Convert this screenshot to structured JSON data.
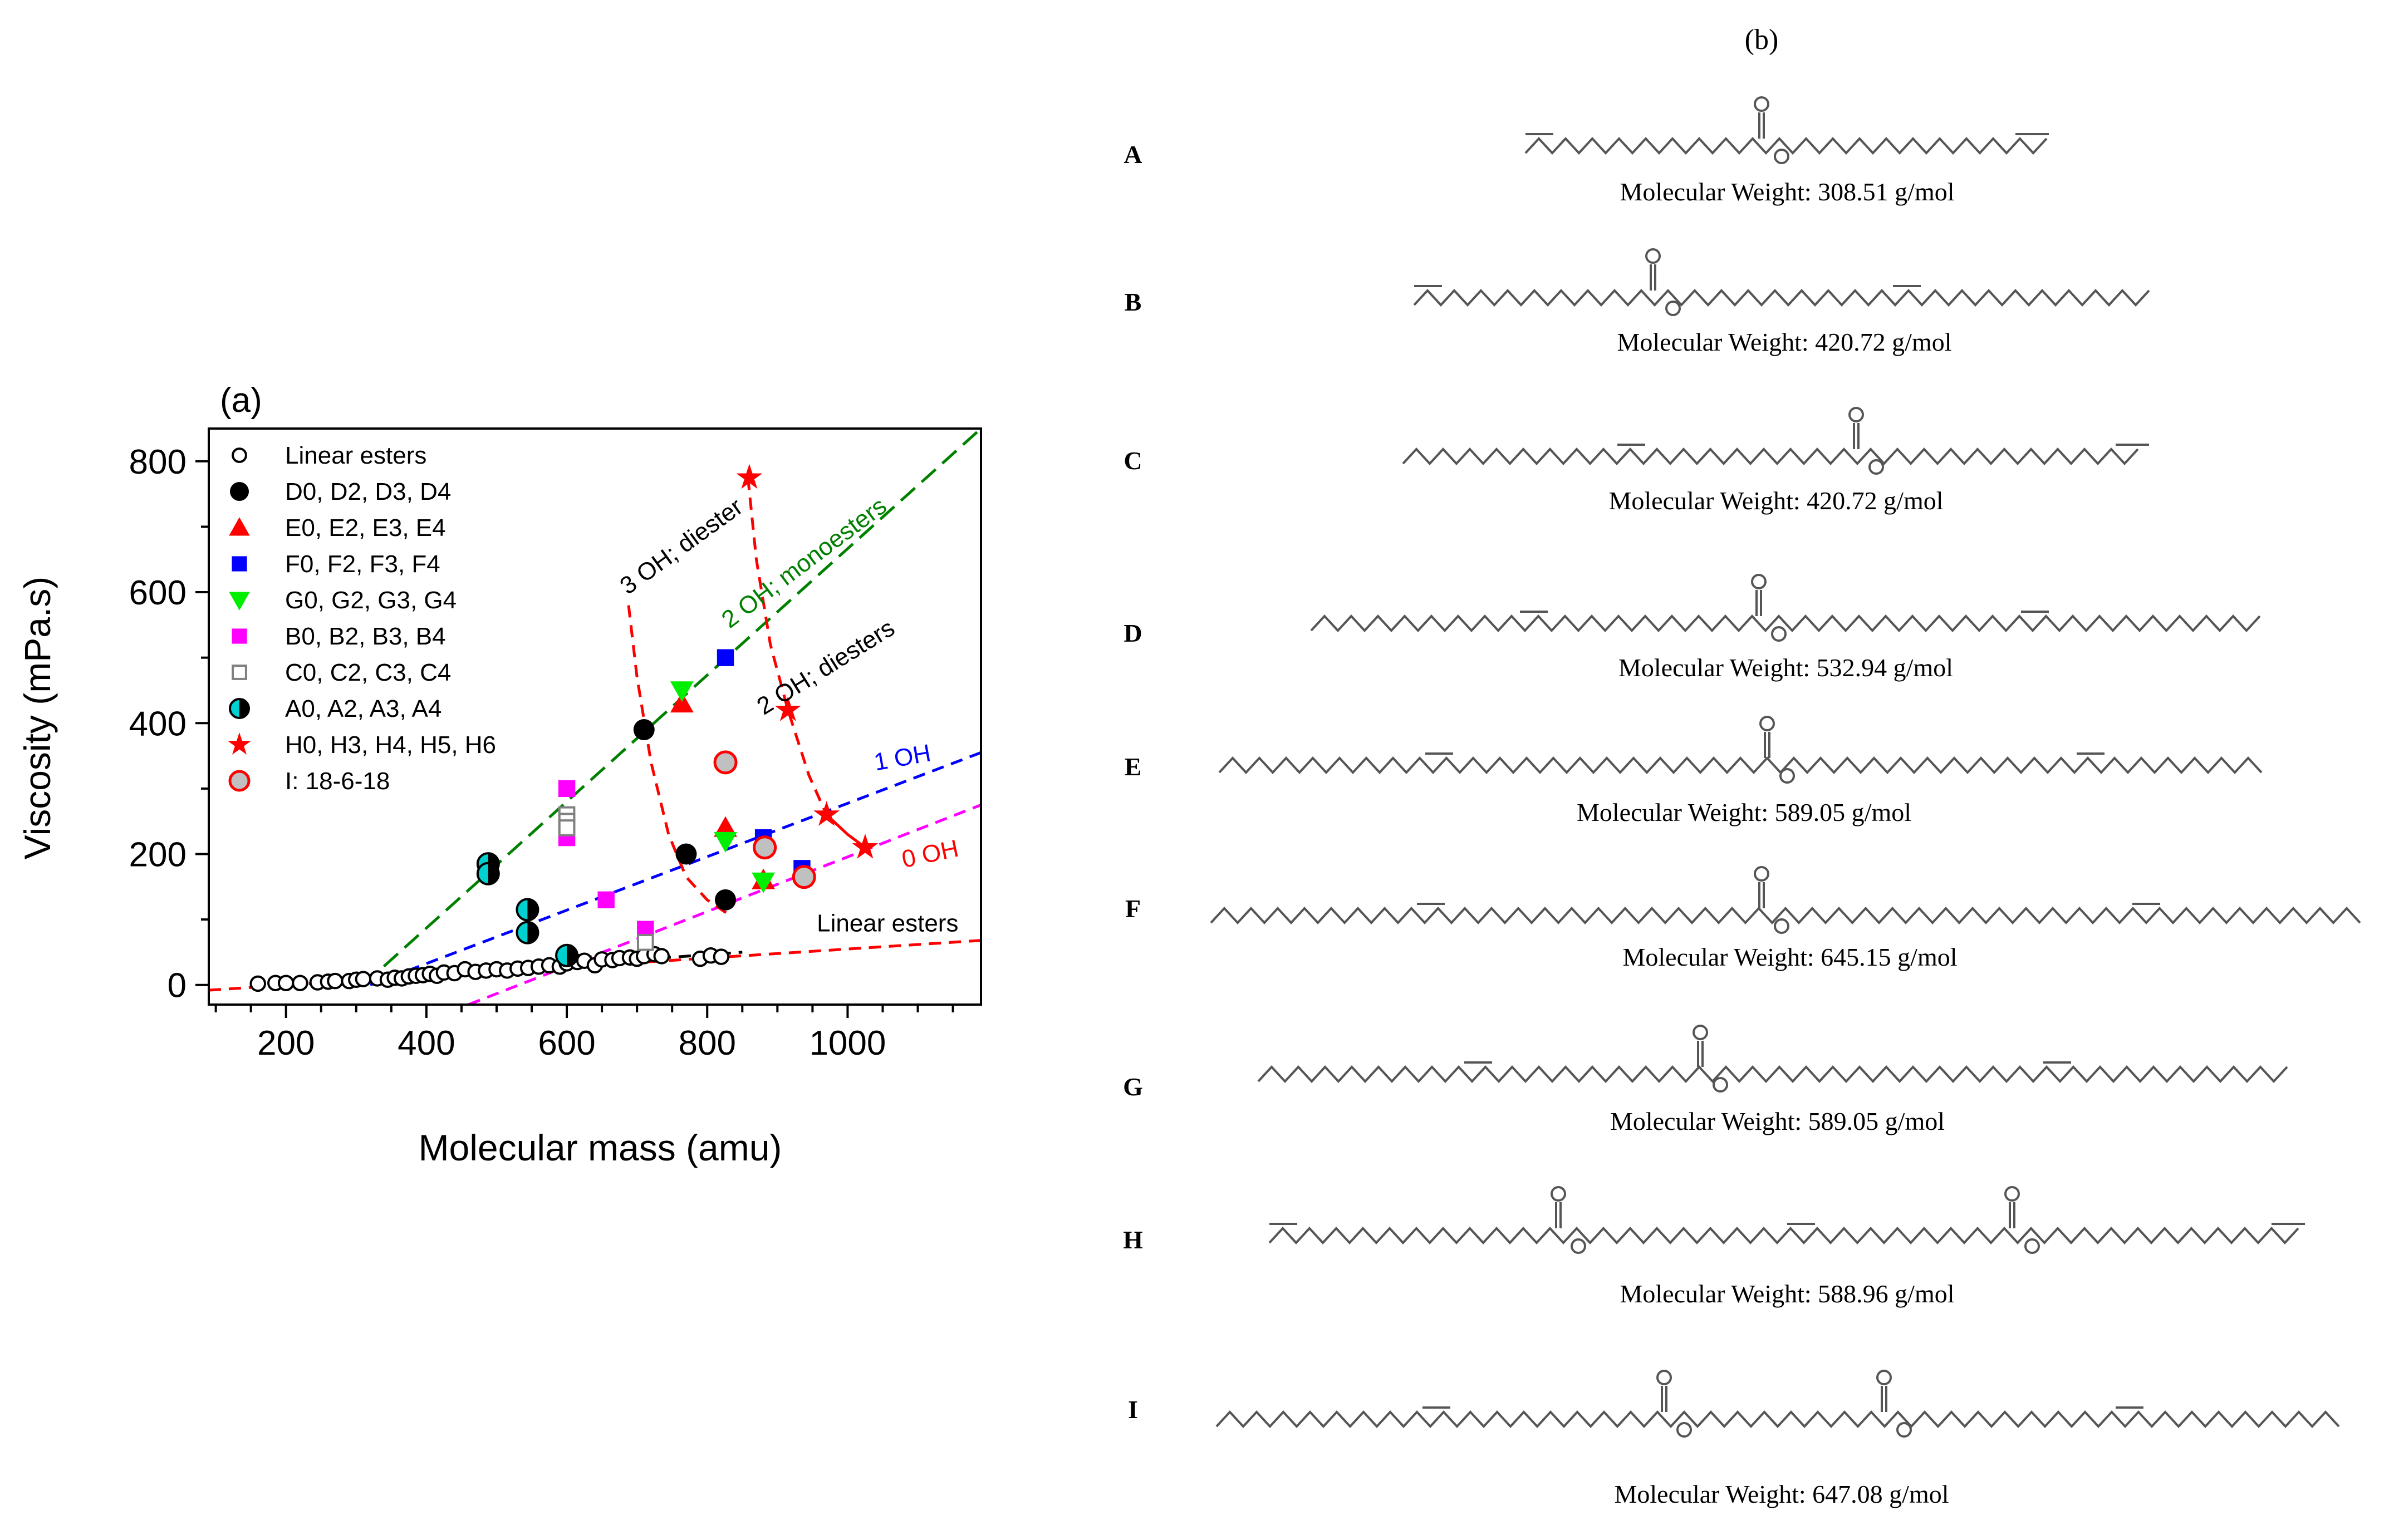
{
  "panel_a": {
    "label": "(a)",
    "chart_data": {
      "type": "scatter",
      "xlabel": "Molecular mass (amu)",
      "ylabel": "Viscosity (mPa.s)",
      "xlim": [
        90,
        1190
      ],
      "ylim": [
        -30,
        850
      ],
      "xticks": [
        200,
        400,
        600,
        800,
        1000
      ],
      "yticks": [
        0,
        200,
        400,
        600,
        800
      ],
      "grid": false,
      "legend_position": "top-left",
      "series": [
        {
          "name": "Linear esters",
          "marker": "circle-open",
          "color": "#000000",
          "points": [
            [
              160,
              2
            ],
            [
              185,
              3
            ],
            [
              200,
              3
            ],
            [
              220,
              3
            ],
            [
              245,
              4
            ],
            [
              260,
              5
            ],
            [
              270,
              6
            ],
            [
              290,
              6
            ],
            [
              300,
              8
            ],
            [
              310,
              9
            ],
            [
              330,
              10
            ],
            [
              345,
              8
            ],
            [
              355,
              11
            ],
            [
              365,
              10
            ],
            [
              375,
              13
            ],
            [
              385,
              14
            ],
            [
              395,
              15
            ],
            [
              405,
              17
            ],
            [
              415,
              14
            ],
            [
              425,
              19
            ],
            [
              440,
              18
            ],
            [
              455,
              24
            ],
            [
              470,
              20
            ],
            [
              485,
              22
            ],
            [
              500,
              24
            ],
            [
              515,
              22
            ],
            [
              530,
              25
            ],
            [
              545,
              26
            ],
            [
              560,
              28
            ],
            [
              575,
              30
            ],
            [
              590,
              28
            ],
            [
              600,
              33
            ],
            [
              615,
              35
            ],
            [
              625,
              37
            ],
            [
              640,
              30
            ],
            [
              650,
              39
            ],
            [
              665,
              38
            ],
            [
              675,
              41
            ],
            [
              690,
              42
            ],
            [
              700,
              40
            ],
            [
              710,
              44
            ],
            [
              725,
              47
            ],
            [
              735,
              44
            ],
            [
              790,
              40
            ],
            [
              805,
              45
            ],
            [
              820,
              43
            ]
          ]
        },
        {
          "name": "D0, D2, D3, D4",
          "marker": "circle",
          "color": "#000000",
          "points": [
            [
              710,
              390
            ],
            [
              770,
              200
            ],
            [
              826,
              130
            ]
          ]
        },
        {
          "name": "E0, E2, E3, E4",
          "marker": "triangle-up",
          "color": "#ff0000",
          "points": [
            [
              764,
              430
            ],
            [
              826,
              240
            ],
            [
              880,
              160
            ]
          ]
        },
        {
          "name": "F0, F2, F3, F4",
          "marker": "square",
          "color": "#0000ff",
          "points": [
            [
              826,
              500
            ],
            [
              880,
              225
            ],
            [
              935,
              178
            ]
          ]
        },
        {
          "name": "G0, G2, G3, G4",
          "marker": "triangle-down",
          "color": "#00ee00",
          "points": [
            [
              764,
              450
            ],
            [
              826,
              220
            ],
            [
              880,
              158
            ]
          ]
        },
        {
          "name": "B0, B2, B3, B4",
          "marker": "square",
          "color": "#ff00ff",
          "points": [
            [
              600,
              300
            ],
            [
              600,
              225
            ],
            [
              656,
              130
            ],
            [
              712,
              85
            ]
          ]
        },
        {
          "name": "C0, C2, C3, C4",
          "marker": "square-open",
          "color": "#808080",
          "points": [
            [
              600,
              260
            ],
            [
              600,
              250
            ],
            [
              600,
              240
            ],
            [
              712,
              65
            ]
          ]
        },
        {
          "name": "A0, A2, A3, A4",
          "marker": "circle-half",
          "color": "#00cccc",
          "points": [
            [
              488,
              185
            ],
            [
              488,
              170
            ],
            [
              544,
              115
            ],
            [
              544,
              80
            ],
            [
              600,
              45
            ]
          ]
        },
        {
          "name": "H0, H3, H4, H5, H6",
          "marker": "star",
          "color": "#ff0000",
          "points": [
            [
              860,
              775
            ],
            [
              915,
              420
            ],
            [
              970,
              260
            ],
            [
              1025,
              210
            ]
          ]
        },
        {
          "name": "I: 18-6-18",
          "marker": "circle-gray",
          "color": "#ff0000",
          "points": [
            [
              826,
              340
            ],
            [
              882,
              210
            ],
            [
              938,
              165
            ]
          ]
        }
      ],
      "lines": [
        {
          "name": "2 OH; monoesters",
          "color": "#008000",
          "dash": "long",
          "from": [
            310,
            0
          ],
          "to": [
            1190,
            850
          ]
        },
        {
          "name": "1 OH",
          "color": "#0000ff",
          "dash": "dash",
          "from": [
            320,
            0
          ],
          "to": [
            1190,
            355
          ]
        },
        {
          "name": "0 OH",
          "color": "#ff00ff",
          "dash": "dash",
          "from": [
            460,
            -30
          ],
          "to": [
            1190,
            275
          ]
        },
        {
          "name": "Linear esters",
          "color": "#ff0000",
          "dash": "dash",
          "from": [
            90,
            -8
          ],
          "to": [
            1190,
            68
          ]
        },
        {
          "name": "Linear esters black",
          "color": "#000000",
          "dash": "dash",
          "from": [
            560,
            28
          ],
          "to": [
            850,
            50
          ]
        }
      ],
      "curves": [
        {
          "name": "3 OH; diester",
          "color": "#ff0000",
          "dash": "dash",
          "points": [
            [
              688,
              580
            ],
            [
              700,
              470
            ],
            [
              720,
              340
            ],
            [
              745,
              230
            ],
            [
              770,
              165
            ],
            [
              800,
              130
            ],
            [
              830,
              108
            ]
          ]
        },
        {
          "name": "2 OH; diesters",
          "color": "#ff0000",
          "dash": "dash",
          "points": [
            [
              858,
              775
            ],
            [
              870,
              650
            ],
            [
              890,
              520
            ],
            [
              915,
              420
            ],
            [
              945,
              320
            ],
            [
              970,
              260
            ]
          ]
        },
        {
          "name": "H solid",
          "color": "#ff0000",
          "dash": "solid",
          "points": [
            [
              970,
              260
            ],
            [
              1000,
              230
            ],
            [
              1025,
              210
            ]
          ]
        }
      ],
      "annotations": [
        {
          "text": "3 OH; diester",
          "x": 770,
          "y": 660,
          "angle": -36,
          "color": "#000000"
        },
        {
          "text": "2 OH; monoesters",
          "x": 945,
          "y": 635,
          "angle": -37,
          "color": "#008000"
        },
        {
          "text": "2 OH; diesters",
          "x": 975,
          "y": 475,
          "angle": -32,
          "color": "#000000"
        },
        {
          "text": "1 OH",
          "x": 1080,
          "y": 335,
          "angle": -10,
          "color": "#0000ff"
        },
        {
          "text": "0 OH",
          "x": 1120,
          "y": 188,
          "angle": -12,
          "color": "#ff0000"
        },
        {
          "text": "Linear esters",
          "x": 1057,
          "y": 82,
          "angle": 0,
          "color": "#000000"
        }
      ]
    }
  },
  "panel_b": {
    "label": "(b)",
    "molecules": [
      {
        "letter": "A",
        "mw": "Molecular Weight: 308.51 g/mol"
      },
      {
        "letter": "B",
        "mw": "Molecular Weight: 420.72  g/mol"
      },
      {
        "letter": "C",
        "mw": "Molecular Weight: 420.72  g/mol"
      },
      {
        "letter": "D",
        "mw": "Molecular Weight: 532.94  g/mol"
      },
      {
        "letter": "E",
        "mw": "Molecular Weight: 589.05  g/mol"
      },
      {
        "letter": "F",
        "mw": "Molecular Weight: 645.15  g/mol"
      },
      {
        "letter": "G",
        "mw": "Molecular Weight: 589.05  g/mol"
      },
      {
        "letter": "H",
        "mw": "Molecular Weight: 588.96  g/mol"
      },
      {
        "letter": "I",
        "mw": "Molecular Weight: 647.08  g/mol"
      }
    ]
  }
}
